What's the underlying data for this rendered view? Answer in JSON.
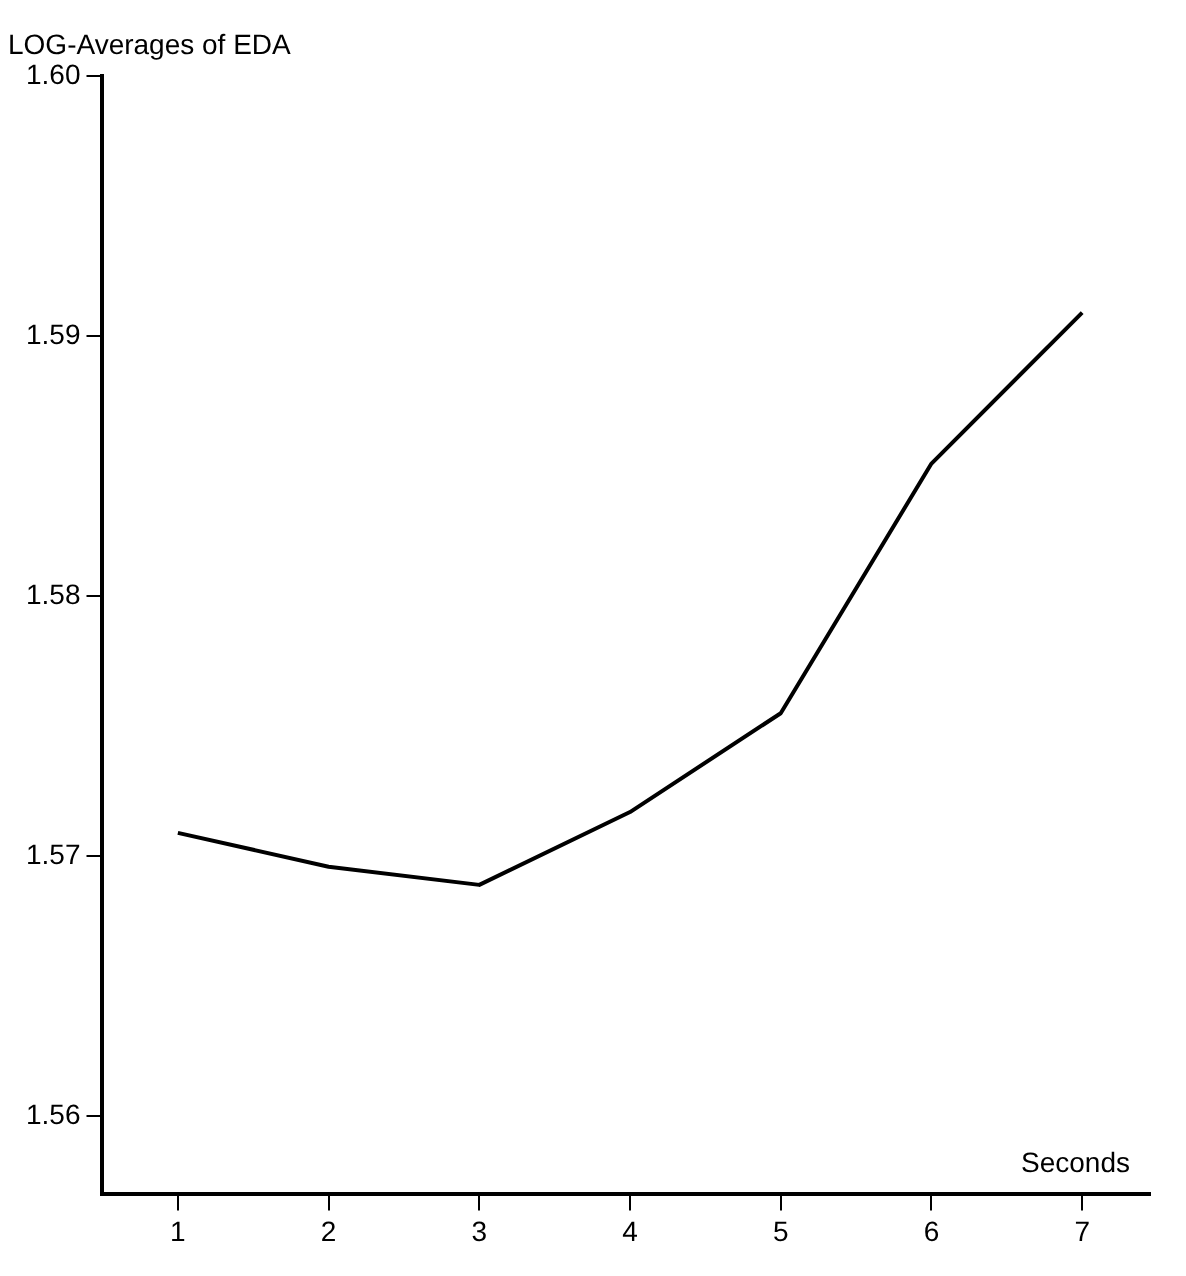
{
  "chart_data": {
    "type": "line",
    "ylabel": "LOG-Averages of EDA",
    "xlabel": "Seconds",
    "x": [
      1,
      2,
      3,
      4,
      5,
      6,
      7
    ],
    "series": [
      {
        "color": "#000000",
        "values": [
          1.5709,
          1.5696,
          1.5689,
          1.5717,
          1.5755,
          1.5851,
          1.5909
        ]
      }
    ],
    "xlim": [
      0.5,
      7.45
    ],
    "xticks": [
      1,
      2,
      3,
      4,
      5,
      6,
      7
    ],
    "ylim": [
      1.557,
      1.6
    ],
    "yticks": [
      1.56,
      1.57,
      1.58,
      1.59,
      {
        "value": 1.6,
        "label": "1.60"
      }
    ],
    "grid": false,
    "legend": false,
    "marker": "none",
    "line_style": "solid"
  }
}
